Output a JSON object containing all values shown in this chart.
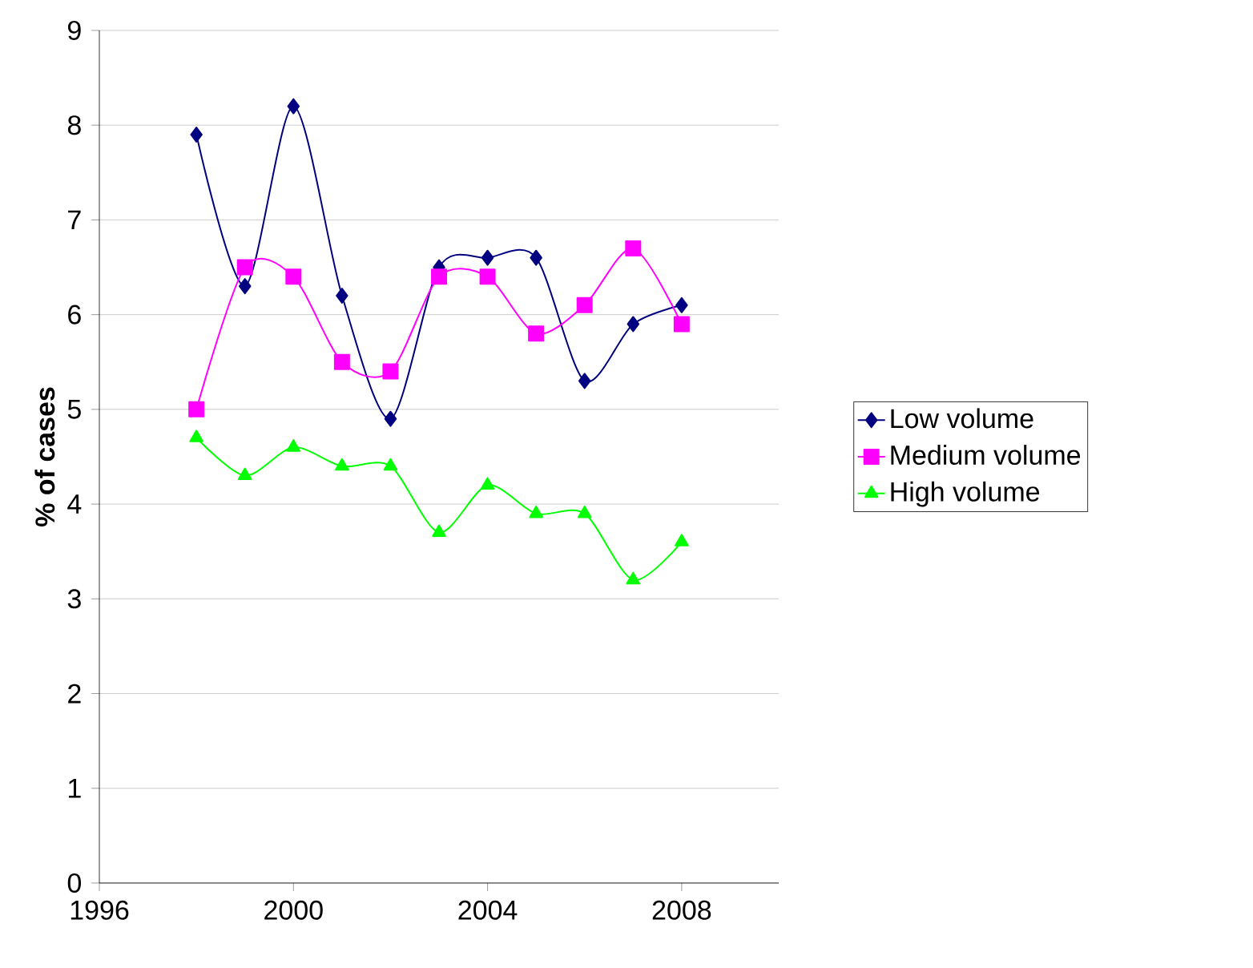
{
  "chart_data": {
    "type": "line",
    "ylabel": "% of cases",
    "x": [
      1998,
      1999,
      2000,
      2001,
      2002,
      2003,
      2004,
      2005,
      2006,
      2007,
      2008
    ],
    "series": [
      {
        "name": "Low volume",
        "color": "#000080",
        "marker": "diamond",
        "values": [
          7.9,
          6.3,
          8.2,
          6.2,
          4.9,
          6.5,
          6.6,
          6.6,
          5.3,
          5.9,
          6.1
        ]
      },
      {
        "name": "Medium volume",
        "color": "#ff00ff",
        "marker": "square",
        "values": [
          5.0,
          6.5,
          6.4,
          5.5,
          5.4,
          6.4,
          6.4,
          5.8,
          6.1,
          6.7,
          5.9
        ]
      },
      {
        "name": "High volume",
        "color": "#00ff00",
        "marker": "triangle",
        "values": [
          4.7,
          4.3,
          4.6,
          4.4,
          4.4,
          3.7,
          4.2,
          3.9,
          3.9,
          3.2,
          3.6
        ]
      }
    ],
    "xlim": [
      1996,
      2010
    ],
    "xticks": [
      1996,
      2000,
      2004,
      2008
    ],
    "ylim": [
      0,
      9
    ],
    "yticks": [
      0,
      1,
      2,
      3,
      4,
      5,
      6,
      7,
      8,
      9
    ],
    "grid": "y",
    "legend": "right",
    "line_style": "solid"
  }
}
